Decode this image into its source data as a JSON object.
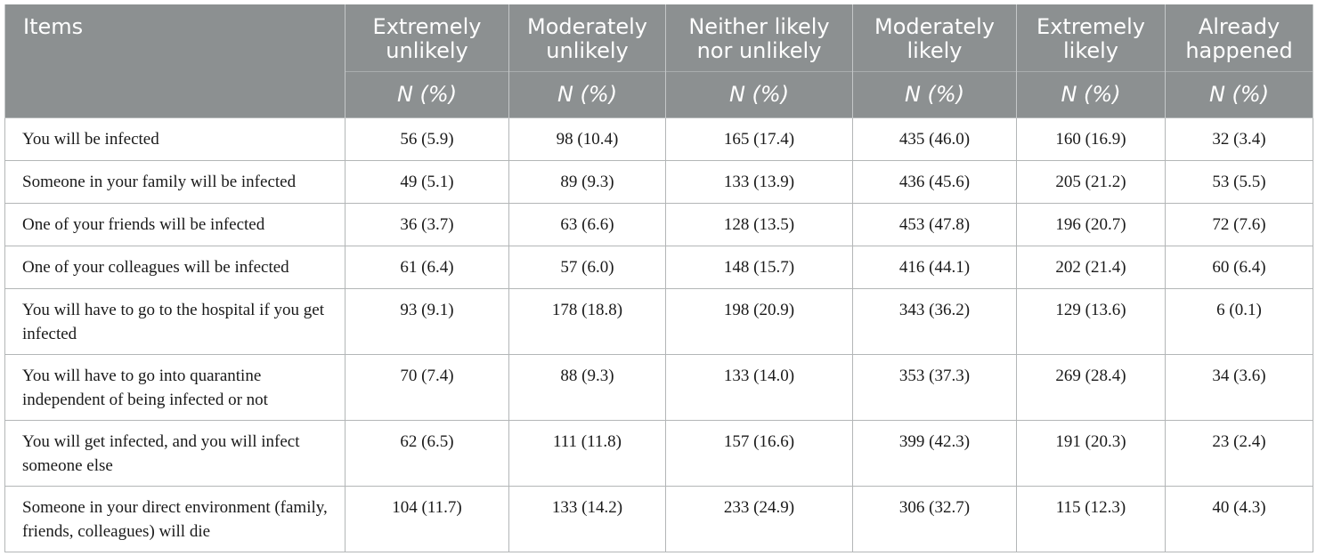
{
  "table": {
    "headers": [
      "Items",
      "Extremely unlikely",
      "Moderately unlikely",
      "Neither likely nor unlikely",
      "Moderately likely",
      "Extremely likely",
      "Already happened"
    ],
    "subheader": "N (%)",
    "rows": [
      {
        "item": "You will be infected",
        "values": [
          "56 (5.9)",
          "98 (10.4)",
          "165 (17.4)",
          "435 (46.0)",
          "160 (16.9)",
          "32 (3.4)"
        ]
      },
      {
        "item": "Someone in your family will be infected",
        "values": [
          "49 (5.1)",
          "89 (9.3)",
          "133 (13.9)",
          "436 (45.6)",
          "205 (21.2)",
          "53 (5.5)"
        ]
      },
      {
        "item": "One of your friends will be infected",
        "values": [
          "36 (3.7)",
          "63 (6.6)",
          "128 (13.5)",
          "453 (47.8)",
          "196 (20.7)",
          "72 (7.6)"
        ]
      },
      {
        "item": "One of your colleagues will be infected",
        "values": [
          "61 (6.4)",
          "57 (6.0)",
          "148 (15.7)",
          "416 (44.1)",
          "202 (21.4)",
          "60 (6.4)"
        ]
      },
      {
        "item": "You will have to go to the hospital if you get infected",
        "values": [
          "93 (9.1)",
          "178 (18.8)",
          "198 (20.9)",
          "343 (36.2)",
          "129 (13.6)",
          "6 (0.1)"
        ]
      },
      {
        "item": "You will have to go into quarantine independent of being infected or not",
        "values": [
          "70 (7.4)",
          "88 (9.3)",
          "133 (14.0)",
          "353 (37.3)",
          "269 (28.4)",
          "34 (3.6)"
        ]
      },
      {
        "item": "You will get infected, and you will infect someone else",
        "values": [
          "62 (6.5)",
          "111 (11.8)",
          "157 (16.6)",
          "399 (42.3)",
          "191 (20.3)",
          "23 (2.4)"
        ]
      },
      {
        "item": "Someone in your direct environment (family, friends, colleagues) will die",
        "values": [
          "104 (11.7)",
          "133 (14.2)",
          "233 (24.9)",
          "306 (32.7)",
          "115 (12.3)",
          "40 (4.3)"
        ]
      }
    ]
  }
}
